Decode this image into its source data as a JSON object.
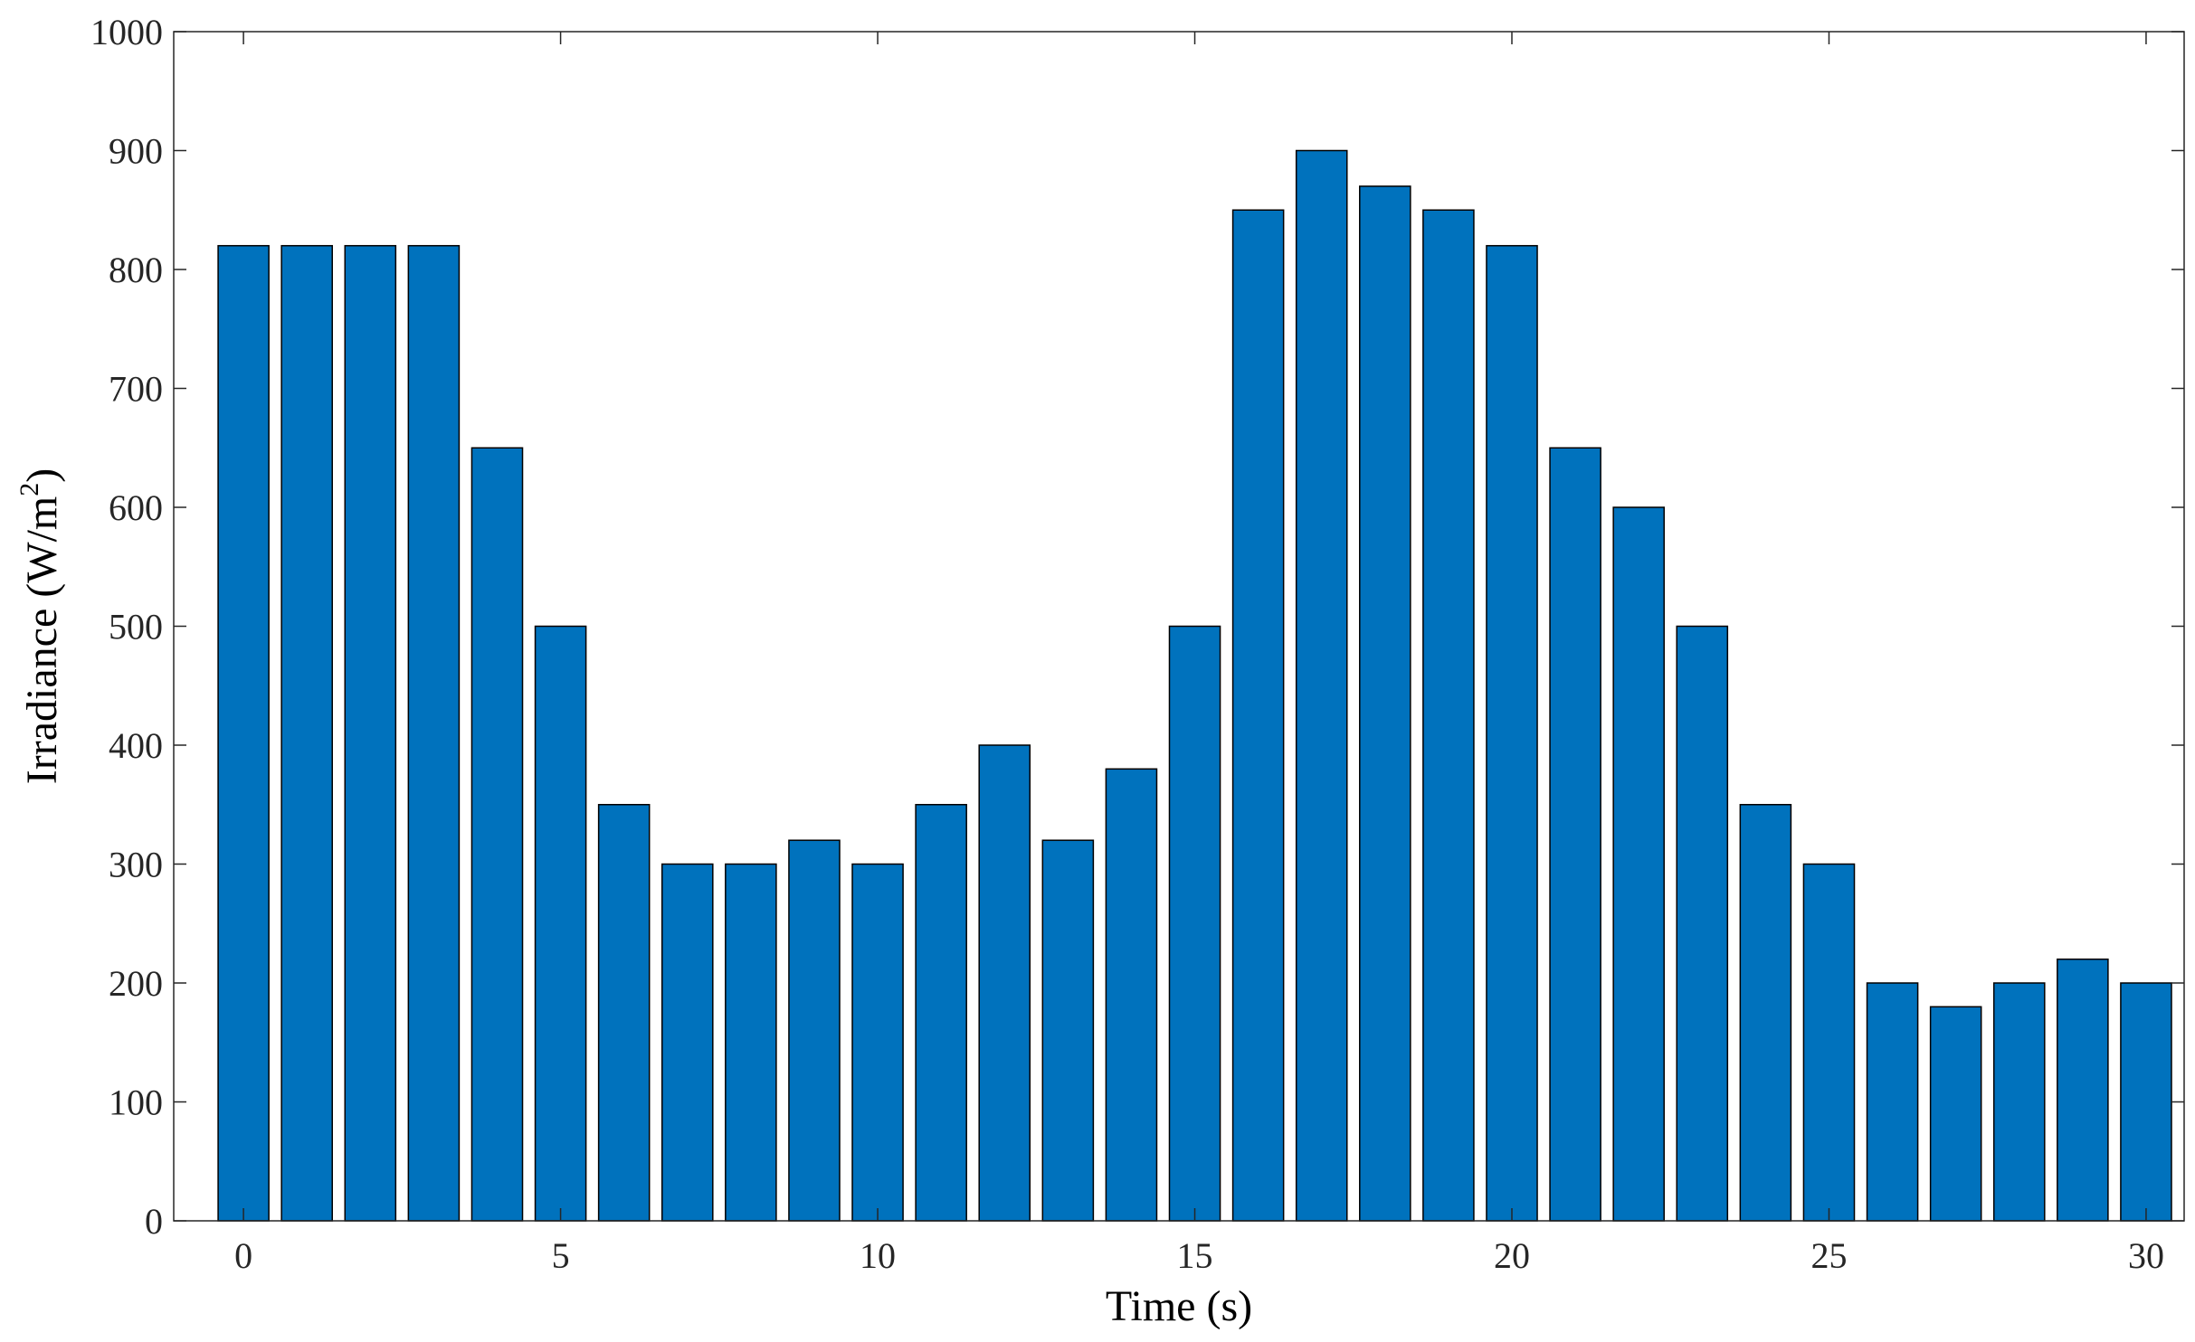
{
  "chart_data": {
    "type": "bar",
    "x": [
      0,
      1,
      2,
      3,
      4,
      5,
      6,
      7,
      8,
      9,
      10,
      11,
      12,
      13,
      14,
      15,
      16,
      17,
      18,
      19,
      20,
      21,
      22,
      23,
      24,
      25,
      26,
      27,
      28,
      29,
      30
    ],
    "values": [
      820,
      820,
      820,
      820,
      650,
      500,
      350,
      300,
      300,
      320,
      300,
      350,
      400,
      320,
      380,
      500,
      850,
      900,
      870,
      850,
      820,
      650,
      600,
      500,
      350,
      300,
      200,
      180,
      200,
      220,
      200
    ],
    "xlabel": "Time (s)",
    "ylabel_main": "Irradiance (W/m",
    "ylabel_sup": "2",
    "ylabel_close": ")",
    "xlim": [
      -1.1,
      30.6
    ],
    "ylim": [
      0,
      1000
    ],
    "xticks": [
      "0",
      "5",
      "10",
      "15",
      "20",
      "25",
      "30"
    ],
    "yticks": [
      "0",
      "100",
      "200",
      "300",
      "400",
      "500",
      "600",
      "700",
      "800",
      "900",
      "1000"
    ],
    "bar_color": "#0072BD",
    "bar_edge_color": "#000000",
    "grid": false,
    "box": true
  }
}
